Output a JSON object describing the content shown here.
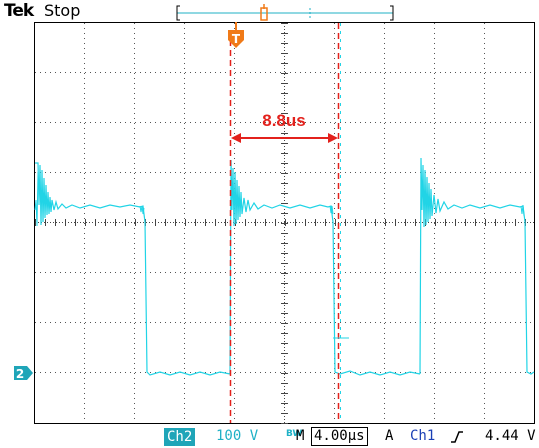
{
  "header": {
    "brand": "Tek",
    "status": "Stop"
  },
  "screen": {
    "measurement_label": "8.8us",
    "trigger_marker": "T",
    "ch2_ground_marker": "2",
    "trace_color": "#21d4e6",
    "cursor_color": "#e3211c",
    "trigger_color": "#f07a18"
  },
  "footer": {
    "channel_badge": "Ch2",
    "volts_per_div": "100 V",
    "bw_icon": "BW",
    "timebase_prefix": "M",
    "timebase": "4.00µs",
    "trigger_mode": "A",
    "trigger_source": "Ch1",
    "trigger_slope_icon": "rising-edge-icon",
    "trigger_level": "4.44 V"
  }
}
